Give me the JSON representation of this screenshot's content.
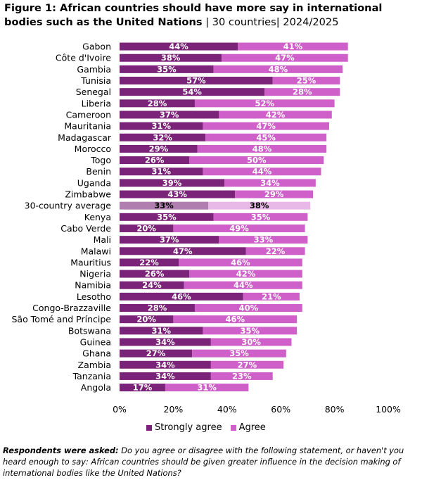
{
  "header": {
    "title_bold": "Figure 1: African countries should have more say in international bodies such as the United Nations",
    "title_suffix": " | 30 countries| 2024/2025"
  },
  "colors": {
    "strongly_agree": "#7b2379",
    "agree": "#cf60c9",
    "average_strongly": "#b07fb0",
    "average_agree": "#e8b8e6"
  },
  "chart_data": {
    "type": "bar",
    "orientation": "horizontal",
    "stacked": true,
    "categories": [
      "Gabon",
      "Côte d'Ivoire",
      "Gambia",
      "Tunisia",
      "Senegal",
      "Liberia",
      "Cameroon",
      "Mauritania",
      "Madagascar",
      "Morocco",
      "Togo",
      "Benin",
      "Uganda",
      "Zimbabwe",
      "30-country average",
      "Kenya",
      "Cabo Verde",
      "Mali",
      "Malawi",
      "Mauritius",
      "Nigeria",
      "Namibia",
      "Lesotho",
      "Congo-Brazzaville",
      "São Tomé and Príncipe",
      "Botswana",
      "Guinea",
      "Ghana",
      "Zambia",
      "Tanzania",
      "Angola"
    ],
    "series": [
      {
        "name": "Strongly agree",
        "values": [
          44,
          38,
          35,
          57,
          54,
          28,
          37,
          31,
          32,
          29,
          26,
          31,
          39,
          43,
          33,
          35,
          20,
          37,
          47,
          22,
          26,
          24,
          46,
          28,
          20,
          31,
          34,
          27,
          34,
          34,
          17
        ]
      },
      {
        "name": "Agree",
        "values": [
          41,
          47,
          48,
          25,
          28,
          52,
          42,
          47,
          45,
          48,
          50,
          44,
          34,
          29,
          38,
          35,
          49,
          33,
          22,
          46,
          42,
          44,
          21,
          40,
          46,
          35,
          30,
          35,
          27,
          23,
          31
        ]
      }
    ],
    "highlight_category": "30-country average",
    "xlim": [
      0,
      100
    ],
    "xticks": [
      "0%",
      "20%",
      "40%",
      "60%",
      "80%",
      "100%"
    ],
    "legend": [
      "Strongly agree",
      "Agree"
    ],
    "label_suffix": "%",
    "legend_position": "bottom"
  },
  "footnote": {
    "lead": "Respondents were asked:",
    "text": " Do you agree or disagree with the following statement, or haven't you heard enough to say: African countries should be given greater influence in the decision making of international bodies like the United Nations?"
  }
}
